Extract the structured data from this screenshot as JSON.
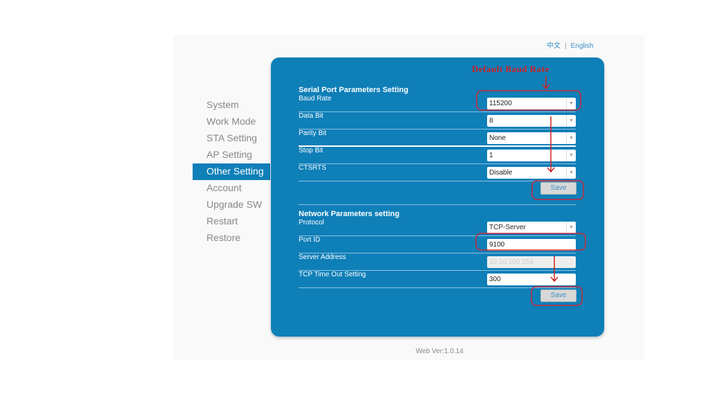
{
  "lang": {
    "chinese": "中文",
    "separator": "|",
    "english": "English"
  },
  "sidebar": {
    "items": [
      {
        "label": "System",
        "active": false
      },
      {
        "label": "Work Mode",
        "active": false
      },
      {
        "label": "STA Setting",
        "active": false
      },
      {
        "label": "AP Setting",
        "active": false
      },
      {
        "label": "Other Setting",
        "active": true
      },
      {
        "label": "Account",
        "active": false
      },
      {
        "label": "Upgrade SW",
        "active": false
      },
      {
        "label": "Restart",
        "active": false
      },
      {
        "label": "Restore",
        "active": false
      }
    ]
  },
  "serial": {
    "title": "Serial Port Parameters Setting",
    "rows": [
      {
        "label": "Baud Rate",
        "value": "115200"
      },
      {
        "label": "Data Bit",
        "value": "8"
      },
      {
        "label": "Parity Bit",
        "value": "None"
      },
      {
        "label": "Stop Bit",
        "value": "1"
      },
      {
        "label": "CTSRTS",
        "value": "Disable"
      }
    ],
    "save": "Save"
  },
  "network": {
    "title": "Network Parameters setting",
    "protocol": {
      "label": "Protocol",
      "value": "TCP-Server"
    },
    "port": {
      "label": "Port ID",
      "value": "9100"
    },
    "server": {
      "label": "Server Address",
      "value": "10.10.100.254"
    },
    "timeout": {
      "label": "TCP Time Out Setting",
      "value": "300"
    },
    "save": "Save"
  },
  "annotation": {
    "text": "Default Baud Rate",
    "color": "#d02020"
  },
  "footer": {
    "version": "Web Ver:1.0.14"
  },
  "colors": {
    "panel": "#0f7fb8",
    "accent": "#3a8fc4"
  }
}
